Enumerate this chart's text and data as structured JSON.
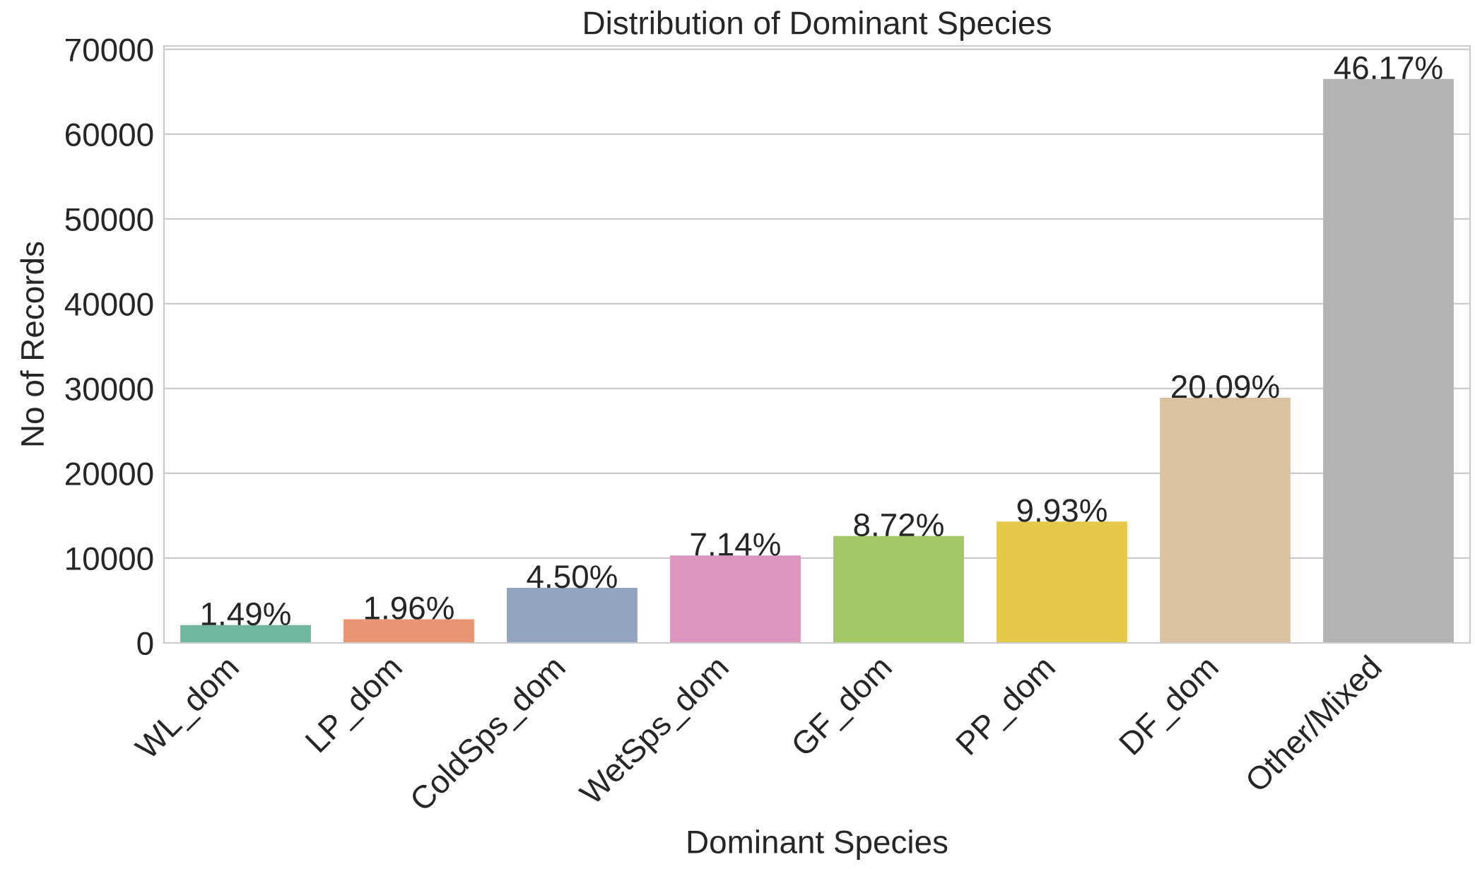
{
  "chart_data": {
    "type": "bar",
    "title": "Distribution of Dominant Species",
    "xlabel": "Dominant Species",
    "ylabel": "No of Records",
    "categories": [
      "WL_dom",
      "LP_dom",
      "ColdSps_dom",
      "WetSps_dom",
      "GF_dom",
      "PP_dom",
      "DF_dom",
      "Other/Mixed"
    ],
    "values": [
      2100,
      2800,
      6500,
      10300,
      12600,
      14300,
      28900,
      66500
    ],
    "colors": [
      "#71b6a1",
      "#e99575",
      "#95a3c3",
      "#db96c0",
      "#a2c764",
      "#e5c849",
      "#dbc29e",
      "#b3b3b3"
    ],
    "annotations": [
      {
        "text": "1.49%",
        "x": "WL_dom",
        "y": 2100
      },
      {
        "text": "1.96%",
        "x": "LP_dom",
        "y": 2800
      },
      {
        "text": "4.50%",
        "x": "ColdSps_dom",
        "y": 6500
      },
      {
        "text": "7.14%",
        "x": "WetSps_dom",
        "y": 10300
      },
      {
        "text": "8.72%",
        "x": "GF_dom",
        "y": 12600
      },
      {
        "text": "9.93%",
        "x": "PP_dom",
        "y": 14300
      },
      {
        "text": "20.09%",
        "x": "DF_dom",
        "y": 28900
      },
      {
        "text": "46.17%",
        "x": "Other/Mixed",
        "y": 66500
      }
    ],
    "ylim": [
      0,
      70400
    ],
    "yticks": [
      0,
      10000,
      20000,
      30000,
      40000,
      50000,
      60000,
      70000
    ],
    "grid": "y"
  }
}
